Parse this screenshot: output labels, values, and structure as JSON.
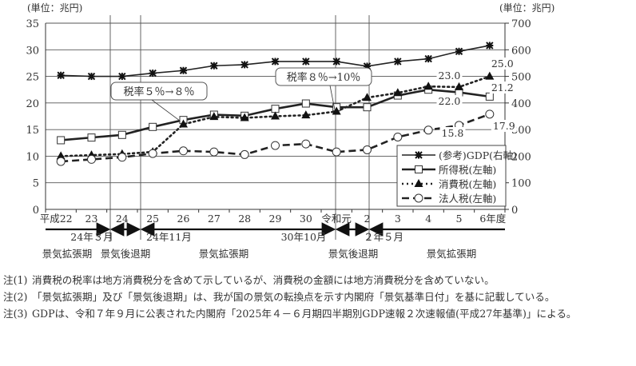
{
  "chart_data": {
    "type": "line",
    "title": "",
    "left_unit": "(単位：兆円)",
    "right_unit": "(単位：兆円)",
    "xlabel": "年度",
    "categories": [
      "平成22",
      "23",
      "24",
      "25",
      "26",
      "27",
      "28",
      "29",
      "30",
      "令和元",
      "2",
      "3",
      "4",
      "5",
      "6年度"
    ],
    "left_axis": {
      "ticks": [
        "0",
        "5",
        "10",
        "15",
        "20",
        "25",
        "30",
        "35"
      ],
      "ylim": [
        0,
        35
      ]
    },
    "right_axis": {
      "ticks": [
        "0",
        "100",
        "200",
        "300",
        "400",
        "500",
        "600",
        "700"
      ],
      "ylim": [
        0,
        700
      ]
    },
    "grid": true,
    "series": [
      {
        "name": "(参考)GDP(右軸)",
        "axis": "right",
        "marker": "asterisk",
        "style": "solid",
        "values": [
          504,
          500,
          500,
          512,
          522,
          540,
          544,
          556,
          556,
          556,
          538,
          556,
          566,
          594,
          616
        ]
      },
      {
        "name": "所得税(左軸)",
        "axis": "left",
        "marker": "square",
        "style": "solid",
        "values": [
          13.0,
          13.5,
          14.0,
          15.5,
          16.8,
          17.8,
          17.6,
          18.9,
          19.9,
          19.2,
          19.2,
          21.4,
          22.5,
          22.0,
          21.2
        ]
      },
      {
        "name": "消費税(左軸)",
        "axis": "left",
        "marker": "triangle",
        "style": "dotted",
        "values": [
          10.0,
          10.2,
          10.4,
          10.8,
          16.0,
          17.4,
          17.2,
          17.5,
          17.7,
          18.4,
          21.0,
          21.9,
          23.1,
          23.0,
          25.0
        ]
      },
      {
        "name": "法人税(左軸)",
        "axis": "left",
        "marker": "circle",
        "style": "dashed",
        "values": [
          9.0,
          9.4,
          9.8,
          10.5,
          11.0,
          10.8,
          10.3,
          12.0,
          12.3,
          10.8,
          11.2,
          13.6,
          14.9,
          15.8,
          17.9
        ]
      }
    ],
    "data_labels": [
      {
        "text": "23.0",
        "series": "消費税(左軸)",
        "index": 13
      },
      {
        "text": "25.0",
        "series": "消費税(左軸)",
        "index": 14
      },
      {
        "text": "22.0",
        "series": "所得税(左軸)",
        "index": 13
      },
      {
        "text": "21.2",
        "series": "所得税(左軸)",
        "index": 14
      },
      {
        "text": "15.8",
        "series": "法人税(左軸)",
        "index": 13
      },
      {
        "text": "17.9",
        "series": "法人税(左軸)",
        "index": 14
      }
    ],
    "annotations": [
      {
        "text": "税率５％→８％",
        "points_to": "26"
      },
      {
        "text": "税率８％→10％",
        "points_to": "令和元"
      }
    ],
    "legend_position": "lower right inside",
    "period_markers": [
      {
        "label": "24年３月",
        "after_index": 1.5
      },
      {
        "label": "24年11月",
        "after_index": 2.3
      },
      {
        "label": "30年10月",
        "after_index": 8.2
      },
      {
        "label": "２年５月",
        "after_index": 9.6
      }
    ],
    "phases": [
      "景気拡張期",
      "景気後退期",
      "景気拡張期",
      "景気後退期",
      "景気拡張期"
    ]
  },
  "notes": [
    {
      "tag": "注(1)",
      "text": "消費税の税率は地方消費税分を含めて示しているが、消費税の金額には地方消費税分を含めていない。"
    },
    {
      "tag": "注(2)",
      "text": "「景気拡張期」及び「景気後退期」は、我が国の景気の転換点を示す内閣府「景気基準日付」を基に記載している。"
    },
    {
      "tag": "注(3)",
      "text": "GDPは、令和７年９月に公表された内閣府「2025年４－６月期四半期別GDP速報２次速報値(平成27年基準)」による。"
    }
  ]
}
